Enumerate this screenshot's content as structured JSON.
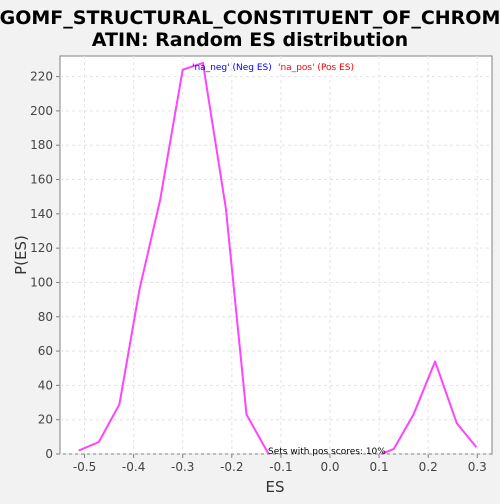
{
  "chart_data": {
    "type": "line",
    "title_line1": "GOMF_STRUCTURAL_CONSTITUENT_OF_CHROM",
    "title_line2": "ATIN: Random ES distribution",
    "xlabel": "ES",
    "ylabel": "P(ES)",
    "xlim": [
      -0.55,
      0.33
    ],
    "ylim": [
      0,
      232
    ],
    "x_ticks": [
      -0.5,
      -0.4,
      -0.3,
      -0.2,
      -0.1,
      0.0,
      0.1,
      0.2,
      0.3
    ],
    "x_tick_labels": [
      "-0.5",
      "-0.4",
      "-0.3",
      "-0.2",
      "-0.1",
      "0.0",
      "0.1",
      "0.2",
      "0.3"
    ],
    "y_ticks": [
      0,
      20,
      40,
      60,
      80,
      100,
      120,
      140,
      160,
      180,
      200,
      220
    ],
    "y_tick_labels": [
      "0",
      "20",
      "40",
      "60",
      "80",
      "100",
      "120",
      "140",
      "160",
      "180",
      "200",
      "220"
    ],
    "grid": true,
    "legend": [
      {
        "label": "'na_neg' (Neg ES)",
        "color": "#0000ff"
      },
      {
        "label": "'na_pos' (Pos ES)",
        "color": "#ff0000"
      }
    ],
    "annotation": "Sets with pos scores: 10%",
    "series": [
      {
        "color": "#ff44ff",
        "x": [
          -0.512,
          -0.471,
          -0.429,
          -0.388,
          -0.346,
          -0.3,
          -0.259,
          -0.212,
          -0.17,
          -0.125
        ],
        "y": [
          2,
          7,
          29,
          96,
          148,
          224,
          228,
          143,
          23,
          0
        ]
      },
      {
        "color": "#ff44ff",
        "x": [
          0.105,
          0.13,
          0.17,
          0.214,
          0.258,
          0.298
        ],
        "y": [
          0,
          3,
          23,
          54,
          18,
          4
        ]
      }
    ]
  }
}
